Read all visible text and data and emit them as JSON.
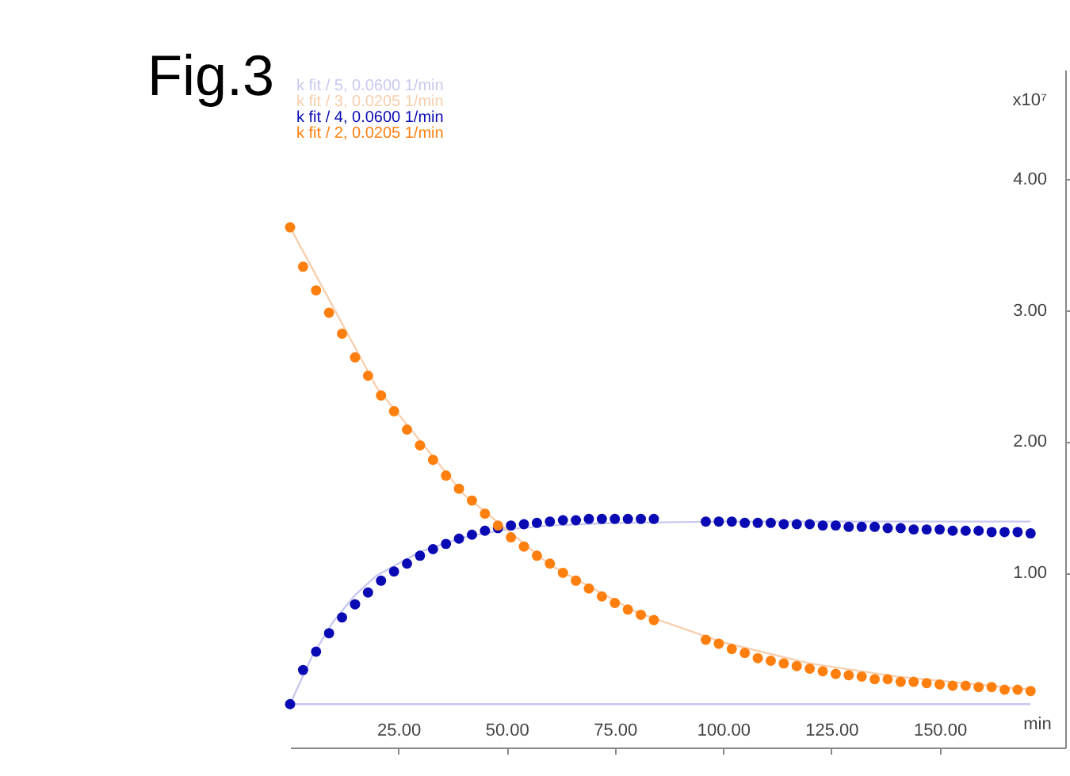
{
  "chart_data": {
    "type": "scatter",
    "title": "Fig.3",
    "xlabel": "min",
    "ylabel": "x10⁷",
    "xlim": [
      0,
      179
    ],
    "ylim": [
      -0.33,
      4.83
    ],
    "xticks": [
      {
        "value": 25,
        "label": "25.00"
      },
      {
        "value": 50,
        "label": "50.00"
      },
      {
        "value": 75,
        "label": "75.00"
      },
      {
        "value": 100,
        "label": "100.00"
      },
      {
        "value": 125,
        "label": "125.00"
      },
      {
        "value": 150,
        "label": "150.00"
      }
    ],
    "yticks": [
      {
        "value": 1,
        "label": "1.00"
      },
      {
        "value": 2,
        "label": "2.00"
      },
      {
        "value": 3,
        "label": "3.00"
      },
      {
        "value": 4,
        "label": "4.00"
      }
    ],
    "legend": "top left",
    "marker": "circle",
    "series": [
      {
        "name": "k fit / 5,  0.0600 1/min",
        "type": "line",
        "marker": "none",
        "color": "#c8c8f0",
        "x": [
          0,
          5,
          10,
          15,
          20,
          30,
          40,
          50,
          60,
          75,
          100,
          125,
          171
        ],
        "values": [
          0,
          0.36,
          0.63,
          0.83,
          0.98,
          1.16,
          1.27,
          1.33,
          1.36,
          1.38,
          1.39,
          1.39,
          1.39
        ]
      },
      {
        "type": "line",
        "marker": "none",
        "color": "#c8c8f0",
        "x": [
          0,
          171
        ],
        "values": [
          0,
          0
        ]
      },
      {
        "name": "k fit / 3,  0.0205 1/min",
        "type": "line",
        "marker": "none",
        "color": "#f8cfae",
        "x": [
          0,
          20,
          40,
          60,
          80,
          100,
          120,
          140,
          171
        ],
        "values": [
          3.63,
          2.41,
          1.6,
          1.06,
          0.7,
          0.47,
          0.31,
          0.21,
          0.11
        ]
      },
      {
        "name": "k fit / 4,  0.0600 1/min",
        "color": "#0a0ab4",
        "x": [
          0,
          3,
          6,
          9,
          12,
          15,
          18,
          21,
          24,
          27,
          30,
          33,
          36,
          39,
          42,
          45,
          48,
          51,
          54,
          57,
          60,
          63,
          66,
          69,
          72,
          75,
          78,
          81,
          84,
          96,
          99,
          102,
          105,
          108,
          111,
          114,
          117,
          120,
          123,
          126,
          129,
          132,
          135,
          138,
          141,
          144,
          147,
          150,
          153,
          156,
          159,
          162,
          165,
          168,
          171
        ],
        "values": [
          0,
          0.26,
          0.4,
          0.54,
          0.66,
          0.76,
          0.85,
          0.94,
          1.01,
          1.07,
          1.13,
          1.18,
          1.22,
          1.26,
          1.29,
          1.32,
          1.34,
          1.36,
          1.37,
          1.38,
          1.39,
          1.4,
          1.4,
          1.41,
          1.41,
          1.41,
          1.41,
          1.41,
          1.41,
          1.39,
          1.39,
          1.39,
          1.38,
          1.38,
          1.38,
          1.37,
          1.37,
          1.37,
          1.36,
          1.36,
          1.35,
          1.35,
          1.35,
          1.34,
          1.34,
          1.33,
          1.33,
          1.33,
          1.32,
          1.32,
          1.32,
          1.31,
          1.31,
          1.31,
          1.3
        ]
      },
      {
        "name": "k fit / 2,  0.0205 1/min",
        "color": "#ff7f0e",
        "x": [
          0,
          3,
          6,
          9,
          12,
          15,
          18,
          21,
          24,
          27,
          30,
          33,
          36,
          39,
          42,
          45,
          48,
          51,
          54,
          57,
          60,
          63,
          66,
          69,
          72,
          75,
          78,
          81,
          84,
          96,
          99,
          102,
          105,
          108,
          111,
          114,
          117,
          120,
          123,
          126,
          129,
          132,
          135,
          138,
          141,
          144,
          147,
          150,
          153,
          156,
          159,
          162,
          165,
          168,
          171
        ],
        "values": [
          3.63,
          3.33,
          3.15,
          2.98,
          2.82,
          2.64,
          2.5,
          2.35,
          2.23,
          2.09,
          1.97,
          1.86,
          1.74,
          1.64,
          1.55,
          1.45,
          1.36,
          1.27,
          1.2,
          1.13,
          1.07,
          1.0,
          0.94,
          0.88,
          0.82,
          0.77,
          0.72,
          0.68,
          0.64,
          0.49,
          0.46,
          0.42,
          0.39,
          0.35,
          0.33,
          0.31,
          0.29,
          0.27,
          0.25,
          0.23,
          0.22,
          0.21,
          0.19,
          0.19,
          0.17,
          0.17,
          0.16,
          0.15,
          0.14,
          0.14,
          0.13,
          0.13,
          0.11,
          0.11,
          0.1
        ]
      }
    ]
  }
}
